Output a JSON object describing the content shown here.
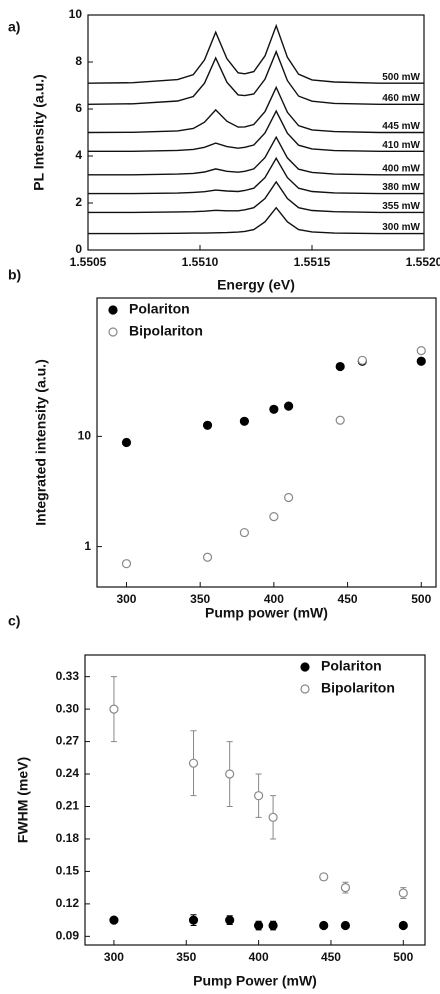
{
  "chart_data": [
    {
      "type": "line",
      "panel": "a)",
      "xlabel": "Energy (eV)",
      "ylabel": "PL Intensity (a.u.)",
      "xlim": [
        1.5505,
        1.552
      ],
      "xticks": [
        1.5505,
        {
          "value": 1.551,
          "label": "1.5510"
        },
        1.5515,
        {
          "value": 1.552,
          "label": "1.5520"
        }
      ],
      "ylim": [
        0,
        10
      ],
      "yticks": [
        0,
        2,
        4,
        6,
        8,
        10
      ],
      "legend": "inline",
      "x": [
        1.5505,
        1.5507,
        1.5509,
        1.55097,
        1.55102,
        1.55107,
        1.55112,
        1.55117,
        1.5512,
        1.55124,
        1.55129,
        1.55134,
        1.55139,
        1.55144,
        1.5515,
        1.5516,
        1.5518,
        1.552
      ],
      "series": [
        {
          "name": "300 mW",
          "color": "#111111",
          "values": [
            0.7,
            0.7,
            0.71,
            0.72,
            0.72,
            0.73,
            0.74,
            0.76,
            0.79,
            0.87,
            1.2,
            1.8,
            1.2,
            0.87,
            0.77,
            0.72,
            0.7,
            0.7
          ]
        },
        {
          "name": "355 mW",
          "color": "#111111",
          "values": [
            1.6,
            1.6,
            1.62,
            1.63,
            1.65,
            1.69,
            1.67,
            1.67,
            1.71,
            1.8,
            2.19,
            2.9,
            2.19,
            1.8,
            1.68,
            1.63,
            1.6,
            1.6
          ]
        },
        {
          "name": "380 mW",
          "color": "#111111",
          "values": [
            2.4,
            2.4,
            2.42,
            2.45,
            2.48,
            2.55,
            2.51,
            2.49,
            2.53,
            2.63,
            3.08,
            3.9,
            3.08,
            2.63,
            2.49,
            2.43,
            2.4,
            2.4
          ]
        },
        {
          "name": "400 mW",
          "color": "#111111",
          "values": [
            3.2,
            3.2,
            3.23,
            3.26,
            3.32,
            3.45,
            3.35,
            3.31,
            3.35,
            3.45,
            3.93,
            4.8,
            3.92,
            3.44,
            3.3,
            3.23,
            3.2,
            3.2
          ]
        },
        {
          "name": "410 mW",
          "color": "#111111",
          "values": [
            4.2,
            4.2,
            4.24,
            4.28,
            4.37,
            4.55,
            4.4,
            4.33,
            4.37,
            4.47,
            4.98,
            5.91,
            4.97,
            4.46,
            4.3,
            4.23,
            4.2,
            4.2
          ]
        },
        {
          "name": "445 mW",
          "color": "#111111",
          "values": [
            5,
            5.01,
            5.07,
            5.17,
            5.44,
            5.96,
            5.48,
            5.23,
            5.24,
            5.34,
            5.89,
            6.92,
            5.86,
            5.29,
            5.11,
            5.04,
            5,
            5
          ]
        },
        {
          "name": "460 mW",
          "color": "#111111",
          "values": [
            6.2,
            6.22,
            6.34,
            6.53,
            7.1,
            8.17,
            7.14,
            6.6,
            6.57,
            6.64,
            7.27,
            8.44,
            7.21,
            6.55,
            6.33,
            6.24,
            6.2,
            6.2
          ]
        },
        {
          "name": "500 mW",
          "color": "#111111",
          "values": [
            7.1,
            7.12,
            7.25,
            7.46,
            8.09,
            9.27,
            8.14,
            7.54,
            7.5,
            7.59,
            8.26,
            9.54,
            8.2,
            7.48,
            7.24,
            7.15,
            7.1,
            7.1
          ]
        }
      ]
    },
    {
      "type": "scatter",
      "panel": "b)",
      "xlabel": "Pump power (mW)",
      "ylabel": "Integrated intensity (a.u.)",
      "xlim": [
        280,
        510
      ],
      "xticks": [
        300,
        350,
        400,
        450,
        500
      ],
      "ylim": [
        0.43,
        180
      ],
      "yticks": [
        1,
        10
      ],
      "log_y": true,
      "legend": "upper left",
      "x": [
        300,
        355,
        380,
        400,
        410,
        445,
        460,
        500
      ],
      "series": [
        {
          "name": "Polariton",
          "color": "#000000",
          "marker": "filled",
          "values": [
            8.8,
            12.6,
            13.7,
            17.6,
            18.8,
            43,
            48,
            48
          ]
        },
        {
          "name": "Bipolariton",
          "color": "#888888",
          "marker": "open",
          "values": [
            0.7,
            0.8,
            1.34,
            1.87,
            2.79,
            14,
            49,
            60
          ]
        }
      ]
    },
    {
      "type": "scatter",
      "panel": "c)",
      "xlabel": "Pump Power (mW)",
      "ylabel": "FWHM (meV)",
      "xlim": [
        280,
        515
      ],
      "xticks": [
        300,
        350,
        400,
        450,
        500
      ],
      "ylim": [
        0.082,
        0.35
      ],
      "yticks": [
        0.09,
        0.12,
        0.15,
        0.18,
        0.21,
        0.24,
        0.27,
        {
          "value": 0.3,
          "label": "0.30"
        },
        0.33
      ],
      "legend": "upper right",
      "x": [
        300,
        355,
        380,
        400,
        410,
        445,
        460,
        500
      ],
      "series": [
        {
          "name": "Polariton",
          "color": "#000000",
          "marker": "filled",
          "values": [
            0.105,
            0.105,
            0.105,
            0.1,
            0.1,
            0.1,
            0.1,
            0.1
          ],
          "errors": [
            0.002,
            0.005,
            0.004,
            0.004,
            0.004,
            0.002,
            0.002,
            0.002
          ]
        },
        {
          "name": "Bipolariton",
          "color": "#888888",
          "marker": "open",
          "values": [
            0.3,
            0.25,
            0.24,
            0.22,
            0.2,
            0.145,
            0.135,
            0.13
          ],
          "errors": [
            0.03,
            0.03,
            0.03,
            0.02,
            0.02,
            0.003,
            0.005,
            0.005
          ]
        }
      ]
    }
  ]
}
